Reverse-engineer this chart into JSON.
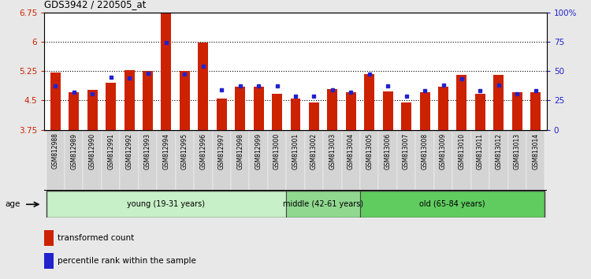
{
  "title": "GDS3942 / 220505_at",
  "samples": [
    "GSM812988",
    "GSM812989",
    "GSM812990",
    "GSM812991",
    "GSM812992",
    "GSM812993",
    "GSM812994",
    "GSM812995",
    "GSM812996",
    "GSM812997",
    "GSM812998",
    "GSM812999",
    "GSM813000",
    "GSM813001",
    "GSM813002",
    "GSM813003",
    "GSM813004",
    "GSM813005",
    "GSM813006",
    "GSM813007",
    "GSM813008",
    "GSM813009",
    "GSM813010",
    "GSM813011",
    "GSM813012",
    "GSM813013",
    "GSM813014"
  ],
  "red_values": [
    5.22,
    4.72,
    4.78,
    4.95,
    5.28,
    5.25,
    6.72,
    5.25,
    5.98,
    4.55,
    4.85,
    4.85,
    4.68,
    4.54,
    4.44,
    4.8,
    4.72,
    5.17,
    4.74,
    4.44,
    4.72,
    4.85,
    5.15,
    4.68,
    5.15,
    4.72,
    4.72
  ],
  "blue_values": [
    4.88,
    4.72,
    4.68,
    5.1,
    5.08,
    5.2,
    5.98,
    5.18,
    5.38,
    4.78,
    4.88,
    4.88,
    4.88,
    4.6,
    4.6,
    4.78,
    4.72,
    5.18,
    4.88,
    4.6,
    4.75,
    4.9,
    5.05,
    4.75,
    4.9,
    4.68,
    4.75
  ],
  "ymin": 3.75,
  "ymax": 6.75,
  "yticks": [
    3.75,
    4.5,
    5.25,
    6.0,
    6.75
  ],
  "ytick_labels": [
    "3.75",
    "4.5",
    "5.25",
    "6",
    "6.75"
  ],
  "right_yticks_pct": [
    0,
    25,
    50,
    75,
    100
  ],
  "right_ytick_labels": [
    "0",
    "25",
    "50",
    "75",
    "100%"
  ],
  "groups": [
    {
      "label": "young (19-31 years)",
      "start": 0,
      "end": 13,
      "color": "#c8f0c8"
    },
    {
      "label": "middle (42-61 years)",
      "start": 13,
      "end": 17,
      "color": "#90d890"
    },
    {
      "label": "old (65-84 years)",
      "start": 17,
      "end": 27,
      "color": "#60cc60"
    }
  ],
  "bar_color": "#cc2200",
  "blue_color": "#2222cc",
  "bg_color": "#ffffff",
  "fig_bg_color": "#e8e8e8",
  "label_bg_color": "#d4d4d4",
  "bar_width": 0.55,
  "grid_dotted_lines": [
    4.5,
    5.25,
    6.0
  ],
  "legend_items": [
    {
      "label": "transformed count",
      "color": "#cc2200"
    },
    {
      "label": "percentile rank within the sample",
      "color": "#2222cc"
    }
  ]
}
